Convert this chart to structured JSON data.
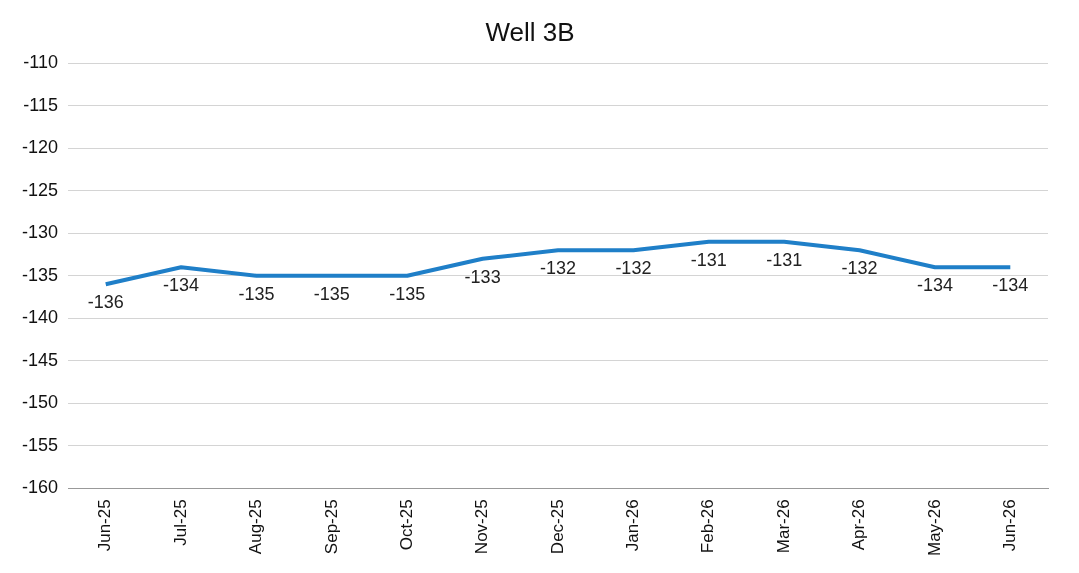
{
  "chart_data": {
    "type": "line",
    "title": "Well 3B",
    "categories": [
      "Jun-25",
      "Jul-25",
      "Aug-25",
      "Sep-25",
      "Oct-25",
      "Nov-25",
      "Dec-25",
      "Jan-26",
      "Feb-26",
      "Mar-26",
      "Apr-26",
      "May-26",
      "Jun-26"
    ],
    "series": [
      {
        "color": "#1f7fc8",
        "values": [
          -136,
          -134,
          -135,
          -135,
          -135,
          -133,
          -132,
          -132,
          -131,
          -131,
          -132,
          -134,
          -134
        ]
      }
    ],
    "ylim": [
      -160,
      -110
    ],
    "yticks": [
      -160,
      -155,
      -150,
      -145,
      -140,
      -135,
      -130,
      -125,
      -120,
      -115,
      -110
    ],
    "grid": "y",
    "legend": false,
    "marker": "none",
    "line_style": "solid",
    "data_labels": true
  }
}
